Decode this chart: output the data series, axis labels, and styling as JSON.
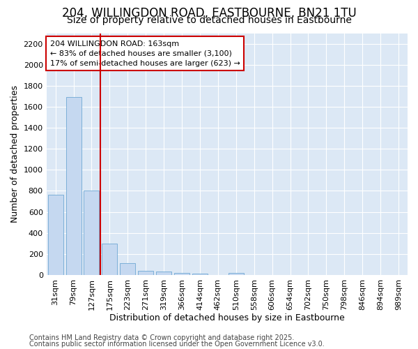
{
  "title1": "204, WILLINGDON ROAD, EASTBOURNE, BN21 1TU",
  "title2": "Size of property relative to detached houses in Eastbourne",
  "xlabel": "Distribution of detached houses by size in Eastbourne",
  "ylabel": "Number of detached properties",
  "categories": [
    "31sqm",
    "79sqm",
    "127sqm",
    "175sqm",
    "223sqm",
    "271sqm",
    "319sqm",
    "366sqm",
    "414sqm",
    "462sqm",
    "510sqm",
    "558sqm",
    "606sqm",
    "654sqm",
    "702sqm",
    "750sqm",
    "798sqm",
    "846sqm",
    "894sqm",
    "989sqm"
  ],
  "values": [
    760,
    1690,
    800,
    300,
    115,
    40,
    35,
    22,
    15,
    0,
    20,
    0,
    0,
    0,
    0,
    0,
    0,
    0,
    0,
    0
  ],
  "bar_color": "#c5d8f0",
  "bar_edge_color": "#6fa8d4",
  "vline_color": "#cc0000",
  "annotation_line1": "204 WILLINGDON ROAD: 163sqm",
  "annotation_line2": "← 83% of detached houses are smaller (3,100)",
  "annotation_line3": "17% of semi-detached houses are larger (623) →",
  "annotation_box_color": "#ffffff",
  "annotation_box_edge": "#cc0000",
  "ylim": [
    0,
    2300
  ],
  "yticks": [
    0,
    200,
    400,
    600,
    800,
    1000,
    1200,
    1400,
    1600,
    1800,
    2000,
    2200
  ],
  "bg_color": "#ffffff",
  "plot_bg_color": "#dce8f5",
  "grid_color": "#ffffff",
  "footer1": "Contains HM Land Registry data © Crown copyright and database right 2025.",
  "footer2": "Contains public sector information licensed under the Open Government Licence v3.0.",
  "title1_fontsize": 12,
  "title2_fontsize": 10,
  "tick_fontsize": 8,
  "label_fontsize": 9,
  "footer_fontsize": 7
}
